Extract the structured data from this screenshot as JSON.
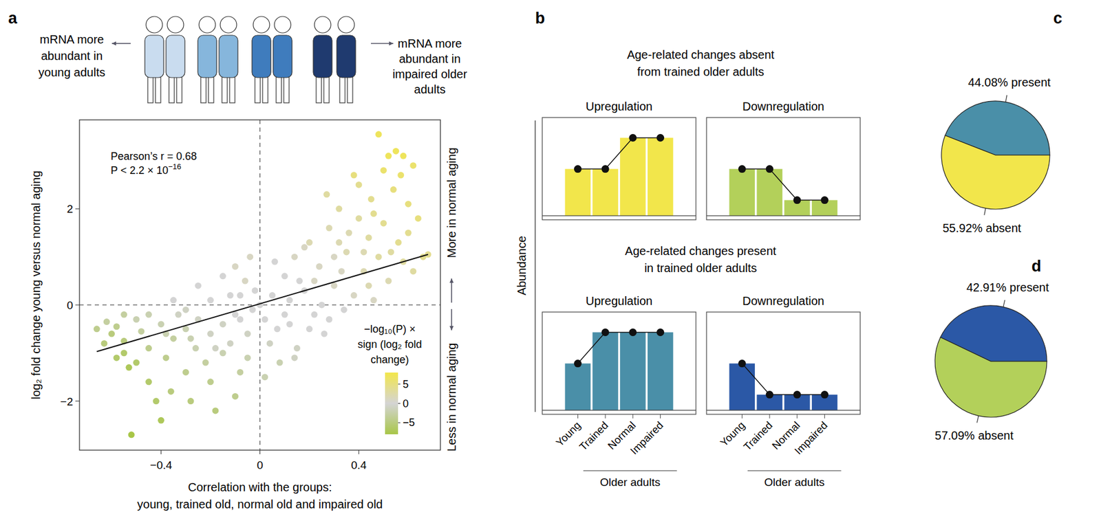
{
  "chart_data": [
    {
      "type": "scatter",
      "panel_label": "a",
      "header_left": [
        "mRNA more",
        "abundant in",
        "young adults"
      ],
      "header_right": [
        "mRNA more",
        "abundant in",
        "impaired older",
        "adults"
      ],
      "annotation": "Pearson’s r = 0.68",
      "p_annotation": {
        "text": "P < 2.2 × 10",
        "superscript": "−16"
      },
      "side_labels": [
        "More in normal aging",
        "Less in normal aging"
      ],
      "xlabel": [
        "Correlation with the groups:",
        "young, trained old, normal old and impaired old"
      ],
      "ylabel": "log₂ fold change young versus normal aging",
      "xlim": [
        -0.73,
        0.73
      ],
      "ylim": [
        -3.02,
        3.85
      ],
      "xticks": [
        {
          "value": -0.4,
          "label": "−0.4"
        },
        0,
        0.4
      ],
      "yticks": [
        {
          "value": -2,
          "label": "−2"
        },
        0,
        2
      ],
      "marker": "circle",
      "x": [
        -0.66,
        -0.62,
        -0.6,
        -0.58,
        -0.55,
        -0.55,
        -0.53,
        -0.5,
        -0.5,
        -0.48,
        -0.52,
        -0.45,
        -0.45,
        -0.42,
        -0.4,
        -0.4,
        -0.38,
        -0.36,
        -0.35,
        -0.33,
        -0.3,
        -0.3,
        -0.28,
        -0.26,
        -0.25,
        -0.22,
        -0.2,
        -0.2,
        -0.18,
        -0.15,
        -0.15,
        -0.12,
        -0.1,
        -0.1,
        -0.08,
        -0.05,
        -0.05,
        -0.03,
        -0.02,
        -0.06,
        -0.12,
        -0.2,
        -0.3,
        -0.45,
        -0.55,
        -0.35,
        -0.25,
        -0.1,
        -0.04,
        -0.15,
        0.02,
        0.04,
        0.05,
        0.08,
        0.1,
        0.12,
        0.14,
        0.15,
        0.18,
        0.2,
        0.22,
        0.24,
        0.26,
        0.28,
        0.3,
        0.32,
        0.34,
        0.35,
        0.38,
        0.4,
        0.4,
        0.42,
        0.44,
        0.45,
        0.46,
        0.48,
        0.48,
        0.5,
        0.5,
        0.52,
        0.52,
        0.54,
        0.55,
        0.56,
        0.57,
        0.58,
        0.58,
        0.6,
        0.6,
        0.62,
        0.62,
        0.64,
        0.66,
        0.68,
        0.44,
        0.36,
        0.3,
        0.25,
        0.16,
        0.1,
        0.06,
        0.2,
        0.33,
        0.46,
        0.53,
        0.38,
        0.07,
        0.27,
        0.02,
        -0.58,
        -0.63,
        0,
        -0.08,
        0.12,
        0.18,
        0.22,
        0.28,
        0.14,
        0.32,
        -0.18,
        -0.28,
        -0.38,
        -0.08,
        0.42
      ],
      "values": [
        -0.5,
        -0.35,
        -0.6,
        -0.45,
        -0.75,
        -1.0,
        -1.3,
        -1.2,
        -0.3,
        -0.55,
        -2.7,
        -0.9,
        -1.6,
        -2.0,
        -0.4,
        -2.4,
        -1.1,
        -1.8,
        -0.7,
        -0.2,
        -1.4,
        -0.5,
        -2.0,
        -0.9,
        -0.3,
        -1.2,
        -1.6,
        -0.6,
        -2.2,
        -0.4,
        -1.0,
        -0.8,
        -1.9,
        -0.2,
        -1.4,
        -0.6,
        -1.1,
        -0.1,
        0.3,
        0.5,
        0.2,
        0.1,
        -0.1,
        -0.2,
        -0.2,
        0.1,
        0.4,
        0.8,
        1.0,
        0.6,
        -0.3,
        -0.8,
        0.2,
        -1.2,
        0.6,
        -0.4,
        1.0,
        -0.9,
        0.3,
        1.3,
        -0.2,
        0.8,
        -0.6,
        1.6,
        0.4,
        2.0,
        -0.1,
        1.1,
        0.2,
        1.8,
        2.5,
        0.7,
        1.4,
        2.2,
        0.1,
        3.55,
        1.0,
        2.8,
        1.7,
        3.1,
        0.5,
        2.4,
        3.2,
        1.3,
        2.7,
        3.1,
        0.9,
        2.1,
        1.5,
        0.7,
        2.9,
        1.8,
        1.0,
        1.05,
        0.4,
        1.5,
        1.0,
        0.0,
        0.5,
        -0.2,
        0.9,
        -0.5,
        0.7,
        1.9,
        1.1,
        2.7,
        -0.5,
        2.3,
        -1.5,
        -1.1,
        -0.8,
        0.0,
        -0.3,
        0.1,
        1.2,
        0.5,
        -0.3,
        -1.1,
        1.3,
        -0.9,
        -0.7,
        -0.6,
        0.2,
        1.1
      ],
      "color_values": [
        -4,
        -3,
        -5,
        -4,
        -5,
        -6,
        -7,
        -6,
        -2,
        -3,
        -8,
        -4,
        -6,
        -6,
        -2,
        -7,
        -4,
        -5,
        -3,
        -1,
        -4,
        -2,
        -5,
        -2,
        -1,
        -3,
        -4,
        -1,
        -5,
        -1,
        -2,
        -1,
        -4,
        0,
        -3,
        -1,
        -2,
        0,
        0,
        1,
        0,
        0,
        -1,
        -2,
        -3,
        0,
        0,
        1,
        1,
        0,
        0,
        -1,
        0,
        -2,
        0,
        0,
        1,
        -1,
        0,
        2,
        0,
        1,
        0,
        2,
        1,
        3,
        0,
        2,
        1,
        3,
        4,
        2,
        3,
        4,
        1,
        7,
        3,
        6,
        4,
        7,
        2,
        5,
        7,
        4,
        6,
        7,
        3,
        5,
        4,
        3,
        6,
        5,
        4,
        4,
        2,
        2,
        1,
        0,
        0,
        0,
        0,
        0,
        1,
        4,
        3,
        5,
        0,
        3,
        -2,
        -6,
        -5,
        0,
        0,
        0,
        1,
        1,
        0,
        -1,
        2,
        -1,
        -2,
        -2,
        0,
        2
      ],
      "colorbar": {
        "title": [
          "−log₁₀(P) ×",
          "sign (log₂ fold",
          "change)"
        ],
        "lim": [
          -8,
          8
        ],
        "ticks": [
          5,
          0,
          {
            "value": -5,
            "label": "−5"
          }
        ]
      },
      "trend_line": {
        "x": [
          -0.66,
          0.68
        ],
        "values": [
          -0.97,
          1.05
        ]
      },
      "reference_lines": {
        "x": [
          0
        ],
        "values": [
          0
        ],
        "line_style": "dashed"
      }
    },
    {
      "type": "bar_panel",
      "panel_label": "b",
      "ylabel": "Abundance",
      "group_label": "Older adults",
      "ylim": [
        -0.13,
        3.15
      ],
      "rows": [
        {
          "heading": "Age-related changes absent from trained older adults",
          "tick_labels": false,
          "charts": [
            {
              "type": "bar",
              "title": "Upregulation",
              "categories": [
                "Young",
                "Trained",
                "Normal",
                "Impaired"
              ],
              "values": [
                1.5,
                1.5,
                2.5,
                2.5
              ],
              "color": "#f2e64b",
              "marker": "circle"
            },
            {
              "type": "bar",
              "title": "Downregulation",
              "categories": [
                "Young",
                "Trained",
                "Normal",
                "Impaired"
              ],
              "values": [
                1.5,
                1.5,
                0.5,
                0.5
              ],
              "color": "#b3d05a",
              "marker": "circle"
            }
          ]
        },
        {
          "heading": "Age-related changes present in trained older adults",
          "tick_labels": "x",
          "charts": [
            {
              "type": "bar",
              "title": "Upregulation",
              "categories": [
                "Young",
                "Trained",
                "Normal",
                "Impaired"
              ],
              "values": [
                1.5,
                2.5,
                2.5,
                2.5
              ],
              "color": "#4a8fa8",
              "marker": "circle"
            },
            {
              "type": "bar",
              "title": "Downregulation",
              "categories": [
                "Young",
                "Trained",
                "Normal",
                "Impaired"
              ],
              "values": [
                1.5,
                0.5,
                0.5,
                0.5
              ],
              "color": "#2b58a6",
              "marker": "circle"
            }
          ]
        }
      ]
    },
    {
      "type": "pie",
      "panel_label": "c",
      "categories": [
        "present",
        "absent"
      ],
      "values": [
        44.08,
        55.92
      ],
      "value_labels": [
        "44.08% present",
        "55.92% absent"
      ],
      "colors": [
        "#4a8fa8",
        "#f2e64b"
      ],
      "data_labels": true
    },
    {
      "type": "pie",
      "panel_label": "d",
      "categories": [
        "present",
        "absent"
      ],
      "values": [
        42.91,
        57.09
      ],
      "value_labels": [
        "42.91% present",
        "57.09% absent"
      ],
      "colors": [
        "#2b58a6",
        "#b3d05a"
      ],
      "data_labels": true
    }
  ]
}
